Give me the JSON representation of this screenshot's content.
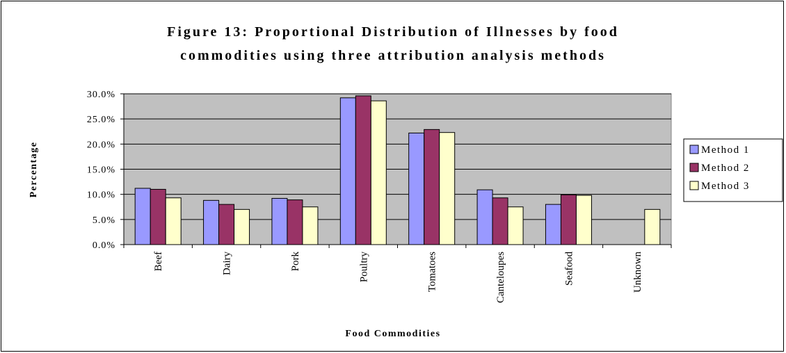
{
  "chart_data": {
    "type": "bar",
    "title_lines": [
      "Figure 13: Proportional Distribution of Illnesses by food",
      "commodities using three attribution analysis methods"
    ],
    "xlabel": "Food Commodities",
    "ylabel": "Percentage",
    "ylim": [
      0,
      30
    ],
    "yticks": [
      "0.0%",
      "5.0%",
      "10.0%",
      "15.0%",
      "20.0%",
      "25.0%",
      "30.0%"
    ],
    "ytick_values": [
      0,
      5,
      10,
      15,
      20,
      25,
      30
    ],
    "categories": [
      "Beef",
      "Dairy",
      "Pork",
      "Poultry",
      "Tomatoes",
      "Canteloupes",
      "Seafood",
      "Unknown"
    ],
    "series": [
      {
        "name": "Method 1",
        "color": "#9999ff",
        "values": [
          11.2,
          8.8,
          9.2,
          29.2,
          22.2,
          10.9,
          8.0,
          null
        ]
      },
      {
        "name": "Method 2",
        "color": "#993366",
        "values": [
          11.0,
          8.0,
          8.9,
          29.6,
          22.9,
          9.3,
          9.9,
          null
        ]
      },
      {
        "name": "Method 3",
        "color": "#ffffcc",
        "values": [
          9.3,
          7.0,
          7.5,
          28.6,
          22.3,
          7.5,
          9.8,
          7.0
        ]
      }
    ],
    "grid": true,
    "legend_position": "right",
    "plot_background": "#c0c0c0"
  }
}
